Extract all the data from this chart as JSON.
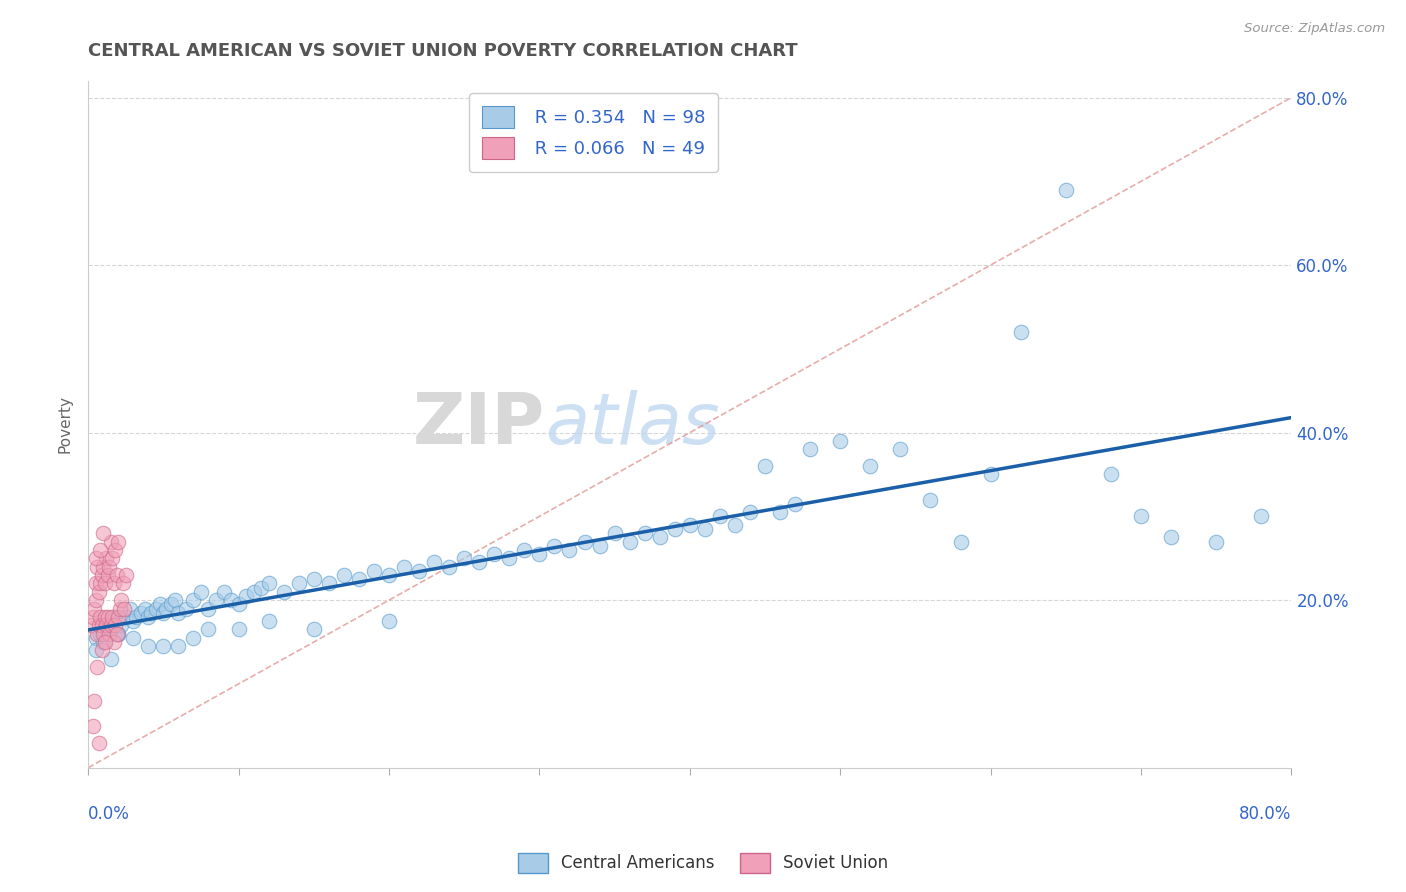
{
  "title": "CENTRAL AMERICAN VS SOVIET UNION POVERTY CORRELATION CHART",
  "source": "Source: ZipAtlas.com",
  "ylabel": "Poverty",
  "xlim": [
    0.0,
    0.8
  ],
  "ylim": [
    0.0,
    0.82
  ],
  "ytick_vals": [
    0.2,
    0.4,
    0.6,
    0.8
  ],
  "ytick_labels": [
    "20.0%",
    "40.0%",
    "60.0%",
    "80.0%"
  ],
  "background_color": "#ffffff",
  "grid_color": "#cccccc",
  "watermark_zip": "ZIP",
  "watermark_atlas": "atlas",
  "legend_R1": "R = 0.354",
  "legend_N1": "N = 98",
  "legend_R2": "R = 0.066",
  "legend_N2": "N = 49",
  "blue_fill": "#a8cce8",
  "blue_edge": "#5599cc",
  "pink_fill": "#f0a0b8",
  "pink_edge": "#cc6688",
  "blue_line_color": "#1a5fa8",
  "diag_line_color": "#e09090",
  "title_color": "#555555",
  "label_color": "#3366cc",
  "ca_x": [
    0.005,
    0.008,
    0.01,
    0.012,
    0.015,
    0.018,
    0.02,
    0.022,
    0.025,
    0.028,
    0.03,
    0.032,
    0.035,
    0.038,
    0.04,
    0.042,
    0.045,
    0.048,
    0.05,
    0.052,
    0.055,
    0.058,
    0.06,
    0.065,
    0.07,
    0.075,
    0.08,
    0.085,
    0.09,
    0.095,
    0.1,
    0.105,
    0.11,
    0.115,
    0.12,
    0.13,
    0.14,
    0.15,
    0.16,
    0.17,
    0.18,
    0.19,
    0.2,
    0.21,
    0.22,
    0.23,
    0.24,
    0.25,
    0.26,
    0.27,
    0.28,
    0.29,
    0.3,
    0.31,
    0.32,
    0.33,
    0.34,
    0.35,
    0.36,
    0.37,
    0.38,
    0.39,
    0.4,
    0.41,
    0.42,
    0.43,
    0.44,
    0.45,
    0.46,
    0.47,
    0.48,
    0.5,
    0.52,
    0.54,
    0.56,
    0.58,
    0.6,
    0.62,
    0.65,
    0.68,
    0.7,
    0.72,
    0.75,
    0.78,
    0.005,
    0.01,
    0.015,
    0.02,
    0.03,
    0.04,
    0.05,
    0.06,
    0.07,
    0.08,
    0.1,
    0.12,
    0.15,
    0.2
  ],
  "ca_y": [
    0.155,
    0.16,
    0.165,
    0.17,
    0.175,
    0.18,
    0.16,
    0.17,
    0.18,
    0.19,
    0.175,
    0.18,
    0.185,
    0.19,
    0.18,
    0.185,
    0.19,
    0.195,
    0.185,
    0.19,
    0.195,
    0.2,
    0.185,
    0.19,
    0.2,
    0.21,
    0.19,
    0.2,
    0.21,
    0.2,
    0.195,
    0.205,
    0.21,
    0.215,
    0.22,
    0.21,
    0.22,
    0.225,
    0.22,
    0.23,
    0.225,
    0.235,
    0.23,
    0.24,
    0.235,
    0.245,
    0.24,
    0.25,
    0.245,
    0.255,
    0.25,
    0.26,
    0.255,
    0.265,
    0.26,
    0.27,
    0.265,
    0.28,
    0.27,
    0.28,
    0.275,
    0.285,
    0.29,
    0.285,
    0.3,
    0.29,
    0.305,
    0.36,
    0.305,
    0.315,
    0.38,
    0.39,
    0.36,
    0.38,
    0.32,
    0.27,
    0.35,
    0.52,
    0.69,
    0.35,
    0.3,
    0.275,
    0.27,
    0.3,
    0.14,
    0.15,
    0.13,
    0.16,
    0.155,
    0.145,
    0.145,
    0.145,
    0.155,
    0.165,
    0.165,
    0.175,
    0.165,
    0.175
  ],
  "su_x": [
    0.002,
    0.003,
    0.004,
    0.005,
    0.005,
    0.006,
    0.006,
    0.007,
    0.007,
    0.008,
    0.008,
    0.009,
    0.009,
    0.01,
    0.01,
    0.011,
    0.011,
    0.012,
    0.012,
    0.013,
    0.013,
    0.014,
    0.014,
    0.015,
    0.015,
    0.016,
    0.016,
    0.017,
    0.017,
    0.018,
    0.018,
    0.019,
    0.019,
    0.02,
    0.02,
    0.021,
    0.022,
    0.023,
    0.024,
    0.025,
    0.003,
    0.004,
    0.005,
    0.006,
    0.007,
    0.008,
    0.009,
    0.01,
    0.011
  ],
  "su_y": [
    0.17,
    0.18,
    0.19,
    0.2,
    0.22,
    0.16,
    0.24,
    0.17,
    0.21,
    0.18,
    0.22,
    0.17,
    0.23,
    0.16,
    0.24,
    0.18,
    0.22,
    0.17,
    0.25,
    0.18,
    0.23,
    0.16,
    0.24,
    0.17,
    0.27,
    0.18,
    0.25,
    0.15,
    0.22,
    0.17,
    0.26,
    0.16,
    0.23,
    0.18,
    0.27,
    0.19,
    0.2,
    0.22,
    0.19,
    0.23,
    0.05,
    0.08,
    0.25,
    0.12,
    0.03,
    0.26,
    0.14,
    0.28,
    0.15
  ]
}
